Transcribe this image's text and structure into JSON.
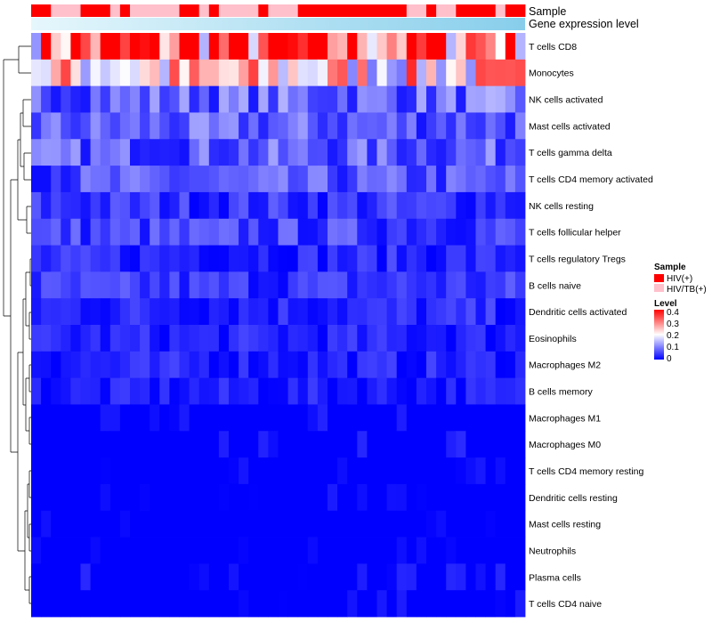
{
  "chart_data": {
    "type": "heatmap",
    "title": "",
    "column_annotations": {
      "sample_label": "Sample",
      "gene_expression_label": "Gene expression level",
      "sample_groups": [
        "HIV(+)",
        "HIV(+)",
        "HIV/TB(+)",
        "HIV/TB(+)",
        "HIV/TB(+)",
        "HIV(+)",
        "HIV(+)",
        "HIV(+)",
        "HIV/TB(+)",
        "HIV(+)",
        "HIV/TB(+)",
        "HIV/TB(+)",
        "HIV/TB(+)",
        "HIV/TB(+)",
        "HIV/TB(+)",
        "HIV(+)",
        "HIV(+)",
        "HIV/TB(+)",
        "HIV(+)",
        "HIV/TB(+)",
        "HIV/TB(+)",
        "HIV/TB(+)",
        "HIV/TB(+)",
        "HIV(+)",
        "HIV/TB(+)",
        "HIV/TB(+)",
        "HIV/TB(+)",
        "HIV(+)",
        "HIV(+)",
        "HIV(+)",
        "HIV(+)",
        "HIV(+)",
        "HIV(+)",
        "HIV(+)",
        "HIV(+)",
        "HIV(+)",
        "HIV(+)",
        "HIV(+)",
        "HIV/TB(+)",
        "HIV/TB(+)",
        "HIV(+)",
        "HIV/TB(+)",
        "HIV/TB(+)",
        "HIV(+)",
        "HIV(+)",
        "HIV(+)",
        "HIV(+)",
        "HIV/TB(+)",
        "HIV(+)",
        "HIV(+)"
      ]
    },
    "rows": [
      "T cells CD8",
      "Monocytes",
      "NK cells activated",
      "Mast cells activated",
      "T cells gamma delta",
      "T cells CD4 memory activated",
      "NK cells resting",
      "T cells follicular helper",
      "T cells regulatory  Tregs",
      "B cells naive",
      "Dendritic cells activated",
      "Eosinophils",
      "Macrophages M2",
      "B cells memory",
      "Macrophages M1",
      "Macrophages M0",
      "T cells CD4 memory resting",
      "Dendritic cells resting",
      "Mast cells resting",
      "Neutrophils",
      "Plasma cells",
      "T cells CD4 naive"
    ],
    "n_columns": 50,
    "row_mean_levels": [
      0.33,
      0.22,
      0.08,
      0.07,
      0.07,
      0.06,
      0.04,
      0.05,
      0.03,
      0.04,
      0.03,
      0.025,
      0.025,
      0.02,
      0.01,
      0.015,
      0.005,
      0.005,
      0.0,
      0.0,
      0.01,
      0.005
    ],
    "legend": {
      "sample_title": "Sample",
      "sample_entries": [
        {
          "label": "HIV(+)",
          "color": "#ff0000"
        },
        {
          "label": "HIV/TB(+)",
          "color": "#ffc0cb"
        }
      ],
      "level_title": "Level",
      "level_ticks": [
        "0.4",
        "0.3",
        "0.2",
        "0.1",
        "0"
      ],
      "level_range": [
        0,
        0.4
      ]
    },
    "colors": {
      "low": "#0000ff",
      "mid": "#ffffff",
      "high": "#ff0000",
      "gene_expression_bar": "#87ceeb"
    }
  }
}
